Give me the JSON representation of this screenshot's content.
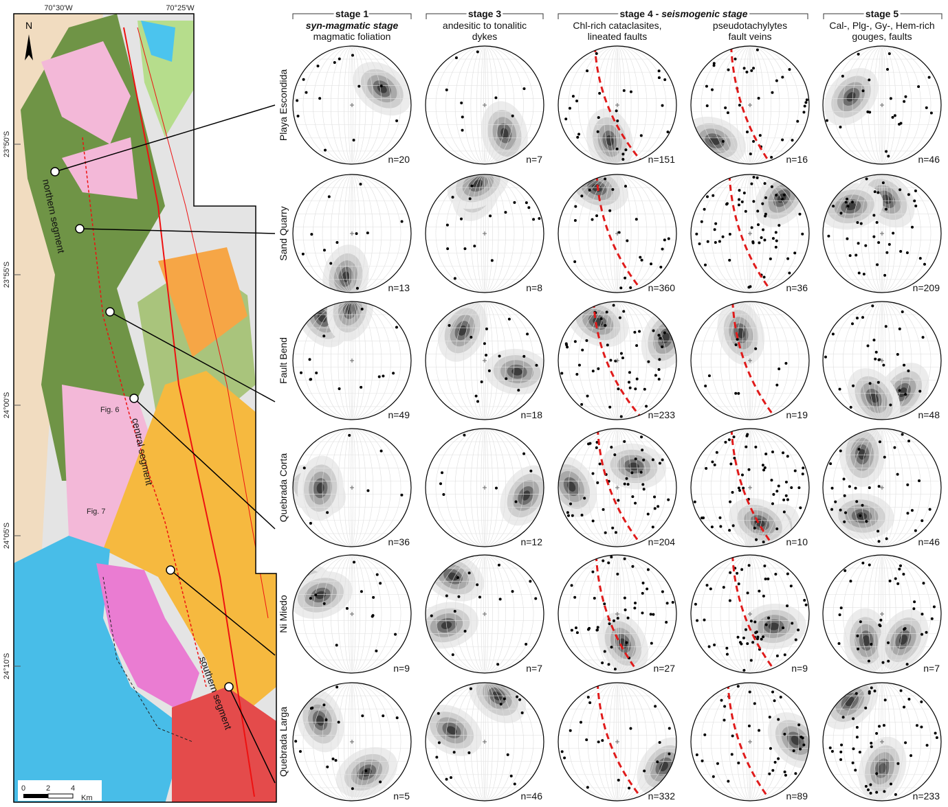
{
  "map": {
    "lon_labels": [
      "70°30'W",
      "70°25'W"
    ],
    "lat_labels": [
      "23°50'S",
      "23°55'S",
      "24°00'S",
      "24°05'S",
      "24°10'S"
    ],
    "north": "N",
    "scale": {
      "ticks": [
        "0",
        "2",
        "4"
      ],
      "unit": "Km"
    },
    "segments": [
      "northern segment",
      "central segment",
      "southern segment"
    ],
    "figure_refs": [
      "Fig. 6",
      "Fig. 7"
    ]
  },
  "headers": [
    {
      "stage": "stage 1",
      "subtitle": "syn-magmatic stage",
      "desc": "magmatic foliation"
    },
    {
      "stage": "stage 3",
      "desc": [
        "andesitic to tonalitic",
        "dykes"
      ]
    },
    {
      "stage": "stage 4 - ",
      "stage_emph": "seismogenic stage",
      "desc_a": [
        "Chl-rich cataclasites,",
        "lineated faults"
      ],
      "desc_b": [
        "pseudotachylytes",
        "fault veins"
      ]
    },
    {
      "stage": "stage 5",
      "desc": [
        "Cal-, Plg-, Gy-, Hem-rich",
        "gouges, faults"
      ]
    }
  ],
  "rows": [
    {
      "site": "Playa Escondida",
      "n": [
        "n=20",
        "n=7",
        "n=151",
        "n=16",
        "n=46"
      ]
    },
    {
      "site": "Sand Quarry",
      "n": [
        "n=13",
        "n=8",
        "n=360",
        "n=36",
        "n=209"
      ]
    },
    {
      "site": "Fault Bend",
      "n": [
        "n=49",
        "n=18",
        "n=233",
        "n=19",
        "n=48"
      ]
    },
    {
      "site": "Quebrada Corta",
      "n": [
        "n=36",
        "n=12",
        "n=204",
        "n=10",
        "n=46"
      ]
    },
    {
      "site": "Ni Miedo",
      "n": [
        "n=9",
        "n=7",
        "n=27",
        "n=9",
        "n=7"
      ]
    },
    {
      "site": "Quebrada Larga",
      "n": [
        "n=5",
        "n=46",
        "n=332",
        "n=89",
        "n=233"
      ]
    }
  ]
}
